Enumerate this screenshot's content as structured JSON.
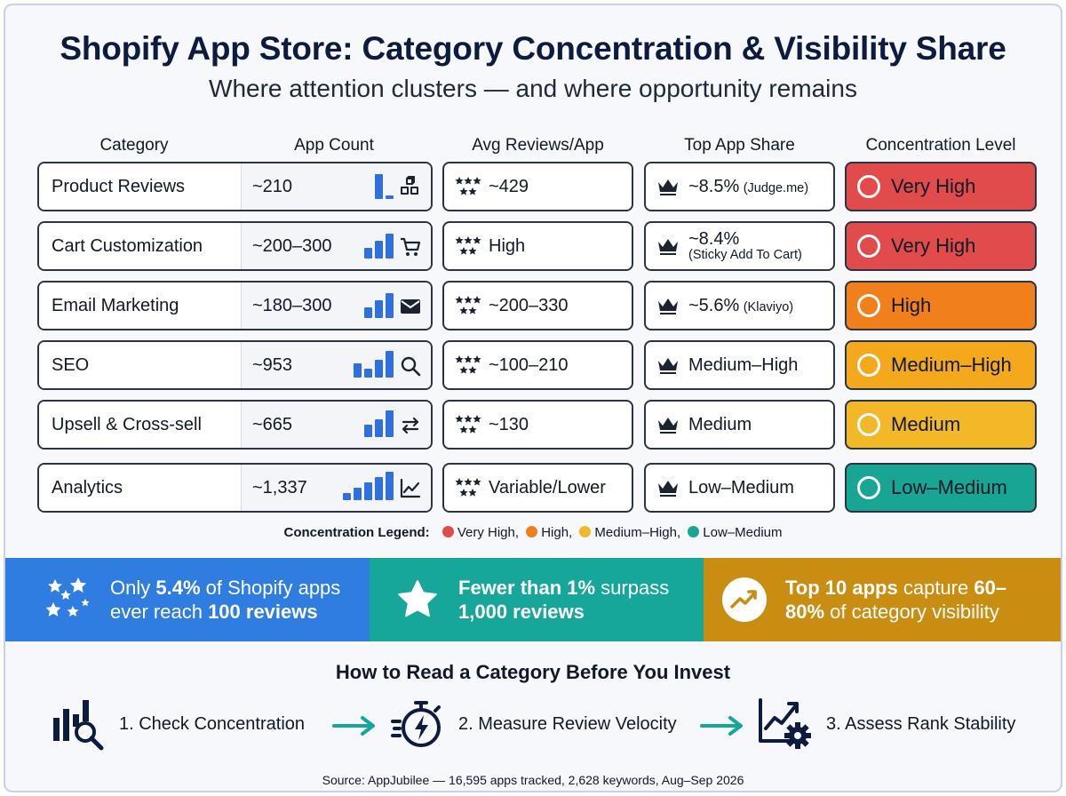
{
  "header": {
    "title": "Shopify App Store: Category Concentration & Visibility Share",
    "subtitle": "Where attention clusters — and where opportunity remains"
  },
  "columns": {
    "category": "Category",
    "app_count": "App Count",
    "avg_reviews": "Avg Reviews/App",
    "top_share": "Top App Share",
    "concentration": "Concentration Level"
  },
  "rows": [
    {
      "category": "Product Reviews",
      "app_count": "~210",
      "count_icon": "boxes-icon",
      "avg_reviews": "~429",
      "top_share": "~8.5%",
      "top_app": "(Judge.me)",
      "concentration": "Very High",
      "conc_color": "#e24b4b"
    },
    {
      "category": "Cart Customization",
      "app_count": "~200–300",
      "count_icon": "cart-icon",
      "avg_reviews": "High",
      "top_share": "~8.4%",
      "top_app": "(Sticky Add To Cart)",
      "concentration": "Very High",
      "conc_color": "#e24b4b"
    },
    {
      "category": "Email Marketing",
      "app_count": "~180–300",
      "count_icon": "envelope-icon",
      "avg_reviews": "~200–330",
      "top_share": "~5.6%",
      "top_app": "(Klaviyo)",
      "concentration": "High",
      "conc_color": "#f07f1c"
    },
    {
      "category": "SEO",
      "app_count": "~953",
      "count_icon": "magnifier-icon",
      "avg_reviews": "~100–210",
      "top_share": "Medium–High",
      "top_app": "",
      "concentration": "Medium–High",
      "conc_color": "#f3a91b"
    },
    {
      "category": "Upsell & Cross-sell",
      "app_count": "~665",
      "count_icon": "swap-arrows-icon",
      "avg_reviews": "~130",
      "top_share": "Medium",
      "top_app": "",
      "concentration": "Medium",
      "conc_color": "#f2b827"
    },
    {
      "category": "Analytics",
      "app_count": "~1,337",
      "count_icon": "line-chart-icon",
      "avg_reviews": "Variable/Lower",
      "top_share": "Low–Medium",
      "top_app": "",
      "concentration": "Low–Medium",
      "conc_color": "#18a594"
    }
  ],
  "legend": {
    "title": "Concentration Legend:",
    "items": [
      {
        "label": "Very High,",
        "color": "#e24b4b"
      },
      {
        "label": "High,",
        "color": "#f07f1c"
      },
      {
        "label": "Medium–High,",
        "color": "#f2b827"
      },
      {
        "label": "Low–Medium",
        "color": "#18a594"
      }
    ]
  },
  "stats": [
    {
      "pre": "Only ",
      "b1": "5.4%",
      "mid": " of Shopify apps",
      "pre2": "ever reach ",
      "b2": "100 reviews",
      "color": "#2f7de1",
      "icon": "stars-icon"
    },
    {
      "pre": "",
      "b1": "Fewer than 1%",
      "mid": " surpass",
      "pre2": "",
      "b2": "1,000 reviews",
      "color": "#17a69a",
      "icon": "star-icon"
    },
    {
      "pre": "",
      "b1": "Top 10 apps",
      "mid": " capture ",
      "b1b": "60–",
      "b2": "80%",
      "post2": " of category visibility",
      "color": "#c98d12",
      "icon": "trend-up-icon"
    }
  ],
  "howto": {
    "title": "How to Read a Category Before You Invest",
    "steps": [
      {
        "label": "1. Check Concentration",
        "icon": "chart-magnifier-icon"
      },
      {
        "label": "2. Measure Review Velocity",
        "icon": "stopwatch-bolt-icon"
      },
      {
        "label": "3. Assess Rank Stability",
        "icon": "chart-gear-icon"
      }
    ]
  },
  "source": "Source: AppJubilee — 16,595 apps tracked, 2,628 keywords, Aug–Sep 2026",
  "colors": {
    "accent_blue": "#2f6fe0",
    "teal": "#17a69a",
    "gold": "#c98d12"
  }
}
